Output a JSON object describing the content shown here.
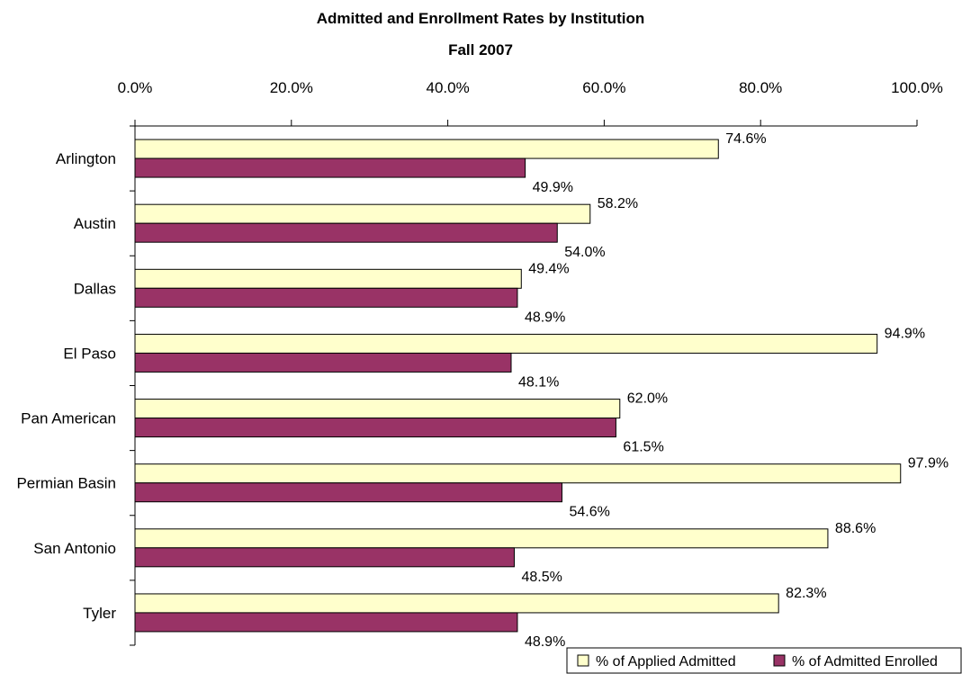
{
  "chart_data": {
    "type": "bar",
    "orientation": "horizontal",
    "title": "Admitted and Enrollment Rates by Institution",
    "subtitle": "Fall 2007",
    "categories": [
      "Arlington",
      "Austin",
      "Dallas",
      "El Paso",
      "Pan American",
      "Permian Basin",
      "San Antonio",
      "Tyler"
    ],
    "series": [
      {
        "name": "% of Applied Admitted",
        "color": "#FFFFCC",
        "values": [
          74.6,
          58.2,
          49.4,
          94.9,
          62.0,
          97.9,
          88.6,
          82.3
        ],
        "labels": [
          "74.6%",
          "58.2%",
          "49.4%",
          "94.9%",
          "62.0%",
          "97.9%",
          "88.6%",
          "82.3%"
        ]
      },
      {
        "name": "% of Admitted Enrolled",
        "color": "#993366",
        "values": [
          49.9,
          54.0,
          48.9,
          48.1,
          61.5,
          54.6,
          48.5,
          48.9
        ],
        "labels": [
          "49.9%",
          "54.0%",
          "48.9%",
          "48.1%",
          "61.5%",
          "54.6%",
          "48.5%",
          "48.9%"
        ]
      }
    ],
    "xlim": [
      0,
      100
    ],
    "xticks": [
      0,
      20,
      40,
      60,
      80,
      100
    ],
    "xtick_labels": [
      "0.0%",
      "20.0%",
      "40.0%",
      "60.0%",
      "80.0%",
      "100.0%"
    ],
    "axis_position": "top",
    "grid": false,
    "legend": "bottom-right"
  }
}
